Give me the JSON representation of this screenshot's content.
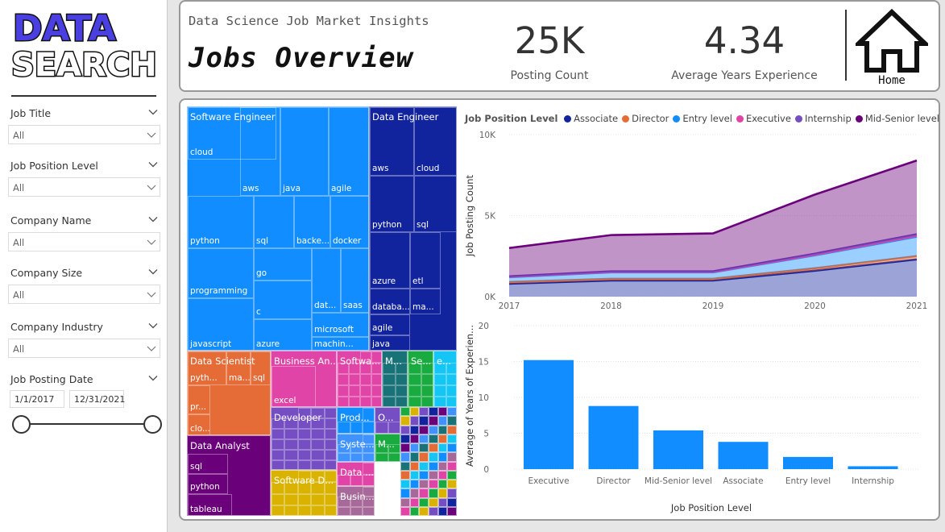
{
  "logo": {
    "line1": "DATA",
    "line2": "SEARCH"
  },
  "filters": [
    {
      "label": "Job Title",
      "value": "All"
    },
    {
      "label": "Job Position Level",
      "value": "All"
    },
    {
      "label": "Company Name",
      "value": "All"
    },
    {
      "label": "Company Size",
      "value": "All"
    },
    {
      "label": "Company Industry",
      "value": "All"
    }
  ],
  "date_filter": {
    "label": "Job Posting Date",
    "start": "1/1/2017",
    "end": "12/31/2021"
  },
  "header": {
    "subtitle": "Data Science Job Market Insights",
    "title": "Jobs Overview",
    "kpis": [
      {
        "value": "25K",
        "label": "Posting Count"
      },
      {
        "value": "4.34",
        "label": "Average Years Experience"
      }
    ],
    "home_label": "Home"
  },
  "treemap": {
    "groups": [
      {
        "name": "Software Engineer",
        "color": "#118dff",
        "labels": [
          "cloud",
          "aws",
          "java",
          "agile",
          "python",
          "sql",
          "backe...",
          "docker",
          "programming",
          "go",
          "c",
          "dat...",
          "saas",
          "microsoft",
          "javascript",
          "azure",
          "machin..."
        ]
      },
      {
        "name": "Data Engineer",
        "color": "#12239e",
        "labels": [
          "aws",
          "cloud",
          "python",
          "sql",
          "azure",
          "etl",
          "databa...",
          "ma...",
          "agile",
          "java"
        ]
      },
      {
        "name": "Data Scientist",
        "color": "#e66c37",
        "labels": [
          "pyth...",
          "ma...",
          "sql",
          "pr...",
          "clo..."
        ]
      },
      {
        "name": "Business An...",
        "color": "#e044a7",
        "labels": [
          "excel"
        ]
      },
      {
        "name": "Softwa...",
        "color": "#e044a7",
        "labels": []
      },
      {
        "name": "M...",
        "color": "#197278",
        "labels": []
      },
      {
        "name": "Se...",
        "color": "#1aab40",
        "labels": []
      },
      {
        "name": "e...",
        "color": "#15c6f4",
        "labels": []
      },
      {
        "name": "Developer",
        "color": "#744ec2",
        "labels": []
      },
      {
        "name": "Prod...",
        "color": "#118dff",
        "labels": []
      },
      {
        "name": "O...",
        "color": "#744ec2",
        "labels": []
      },
      {
        "name": "Syste...",
        "color": "#4092ff",
        "labels": []
      },
      {
        "name": "M...",
        "color": "#1aab40",
        "labels": []
      },
      {
        "name": "Data ...",
        "color": "#e044a7",
        "labels": []
      },
      {
        "name": "Busin...",
        "color": "#a66999",
        "labels": []
      },
      {
        "name": "Data Analyst",
        "color": "#6b007b",
        "labels": [
          "sql",
          "python",
          "tableau"
        ]
      },
      {
        "name": "Software D...",
        "color": "#d9b300",
        "labels": []
      }
    ]
  },
  "chart_data": [
    {
      "type": "area",
      "legend_title": "Job Position Level",
      "legend_position": "top",
      "x": [
        2017,
        2018,
        2019,
        2020,
        2021
      ],
      "ylabel": "Job Posting Count",
      "xlabel": "",
      "ylim": [
        0,
        10000
      ],
      "y_ticks": [
        "0K",
        "5K",
        "10K"
      ],
      "stacked": true,
      "series": [
        {
          "name": "Associate",
          "color": "#12239e",
          "values": [
            800,
            1000,
            1000,
            1600,
            2300
          ]
        },
        {
          "name": "Director",
          "color": "#e66c37",
          "values": [
            100,
            100,
            100,
            150,
            200
          ]
        },
        {
          "name": "Entry level",
          "color": "#118dff",
          "values": [
            300,
            400,
            400,
            800,
            1200
          ]
        },
        {
          "name": "Executive",
          "color": "#e044a7",
          "values": [
            20,
            20,
            20,
            30,
            50
          ]
        },
        {
          "name": "Internship",
          "color": "#744ec2",
          "values": [
            30,
            40,
            40,
            70,
            100
          ]
        },
        {
          "name": "Mid-Senior level",
          "color": "#6b007b",
          "values": [
            1750,
            2240,
            2340,
            3650,
            4550
          ]
        }
      ]
    },
    {
      "type": "bar",
      "categories": [
        "Executive",
        "Director",
        "Mid-Senior level",
        "Associate",
        "Entry level",
        "Internship"
      ],
      "values": [
        15.2,
        8.8,
        5.4,
        3.8,
        1.7,
        0.4
      ],
      "xlabel": "Job Position Level",
      "ylabel": "Average of Years of Experien...",
      "ylim": [
        0,
        20
      ],
      "y_ticks": [
        "0",
        "5",
        "10",
        "15",
        "20"
      ],
      "color": "#118dff",
      "grid": true
    }
  ]
}
